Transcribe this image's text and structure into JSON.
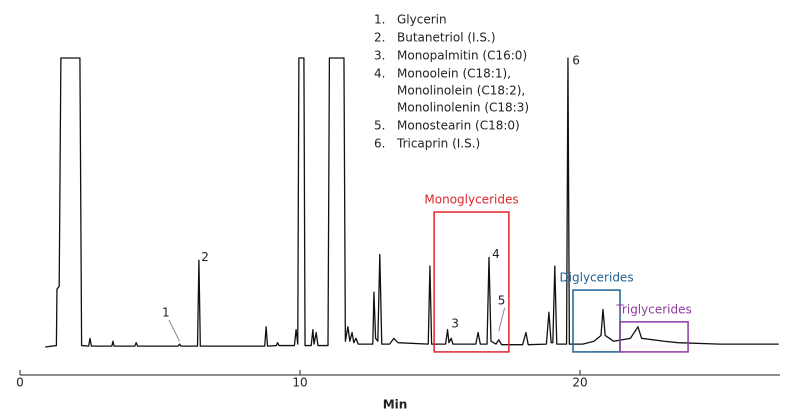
{
  "chart_data": {
    "type": "line",
    "x_label": "Min",
    "xlim": [
      0,
      27.1
    ],
    "ylim": [
      0,
      100
    ],
    "xticks": [
      0,
      10,
      20
    ],
    "color": "#111111",
    "x": [
      0.9,
      1.3,
      1.32,
      1.4,
      1.46,
      2.14,
      2.2,
      2.45,
      2.5,
      2.55,
      3.28,
      3.32,
      3.36,
      4.1,
      4.15,
      4.2,
      5.65,
      5.7,
      5.75,
      6.34,
      6.39,
      6.44,
      8.74,
      8.79,
      8.84,
      9.15,
      9.2,
      9.25,
      9.8,
      9.86,
      9.92,
      9.96,
      10.14,
      10.18,
      10.4,
      10.46,
      10.5,
      10.58,
      10.64,
      11.0,
      11.05,
      11.57,
      11.62,
      11.71,
      11.78,
      11.86,
      11.92,
      12.0,
      12.08,
      12.6,
      12.64,
      12.7,
      12.78,
      12.85,
      12.92,
      13.2,
      13.35,
      13.5,
      14.58,
      14.64,
      14.7,
      15.2,
      15.27,
      15.32,
      15.4,
      15.46,
      16.28,
      16.36,
      16.44,
      16.68,
      16.75,
      16.82,
      17.0,
      17.1,
      17.2,
      17.95,
      18.07,
      18.15,
      18.8,
      18.89,
      18.97,
      19.03,
      19.1,
      19.17,
      19.52,
      19.57,
      19.62,
      20.1,
      20.5,
      20.75,
      20.82,
      20.9,
      21.2,
      21.8,
      22.07,
      22.2,
      23.0,
      23.5,
      25,
      27.1
    ],
    "values": [
      0,
      0.5,
      20,
      21,
      100,
      100,
      0.5,
      0.3,
      3,
      0.3,
      0.3,
      2,
      0.3,
      0.3,
      1.5,
      0.3,
      0.3,
      1,
      0.3,
      0.3,
      30,
      0.3,
      0.3,
      7,
      0.3,
      0.5,
      1.5,
      0.5,
      0.5,
      6,
      1,
      100,
      100,
      0.5,
      0.5,
      6,
      1,
      5,
      0.5,
      0.5,
      100,
      100,
      2,
      7,
      2,
      5,
      1.5,
      3,
      1,
      1,
      19,
      3,
      2,
      32,
      1,
      1,
      3,
      1.5,
      1,
      28,
      1,
      1,
      6,
      1.5,
      3,
      1,
      1,
      5,
      1,
      1,
      31,
      2,
      1,
      2.5,
      0.8,
      0.8,
      5,
      0.8,
      1,
      12,
      1.5,
      1.5,
      28,
      1,
      1,
      100,
      1,
      1,
      2,
      4,
      13,
      4,
      2,
      3,
      7,
      3,
      2,
      1.5,
      1,
      1
    ],
    "legend_items": [
      {
        "number": "1.",
        "lines": [
          "Glycerin"
        ]
      },
      {
        "number": "2.",
        "lines": [
          "Butanetriol (I.S.)"
        ]
      },
      {
        "number": "3.",
        "lines": [
          "Monopalmitin (C16:0)"
        ]
      },
      {
        "number": "4.",
        "lines": [
          "Monoolein (C18:1),",
          "Monolinolein (C18:2),",
          "Monolinolenin (C18:3)"
        ]
      },
      {
        "number": "5.",
        "lines": [
          "Monostearin (C18:0)"
        ]
      },
      {
        "number": "6.",
        "lines": [
          "Tricaprin (I.S.)"
        ]
      }
    ],
    "peak_labels": [
      {
        "text": "1",
        "x": 5.21,
        "y": 11.8,
        "to": [
          5.7,
          2
        ]
      },
      {
        "text": "2",
        "x": 6.61,
        "y": 31
      },
      {
        "text": "3",
        "x": 15.54,
        "y": 8
      },
      {
        "text": "4",
        "x": 17.0,
        "y": 32
      },
      {
        "text": "5",
        "x": 17.2,
        "y": 16,
        "to": [
          17.1,
          5.5
        ]
      },
      {
        "text": "6",
        "x": 19.86,
        "y": 99
      }
    ],
    "regions": [
      {
        "label": "Monoglycerides",
        "color": "#e0262b",
        "x": [
          14.79,
          17.46
        ],
        "y": [
          -1.7,
          46.7
        ]
      },
      {
        "label": "Diglycerides",
        "color": "#1f6391",
        "x": [
          19.75,
          21.43
        ],
        "y": [
          -1.7,
          19.7
        ]
      },
      {
        "label": "Triglycerides",
        "color": "#8e3b9e",
        "x": [
          21.43,
          23.86
        ],
        "y": [
          -1.7,
          8.7
        ]
      }
    ]
  }
}
